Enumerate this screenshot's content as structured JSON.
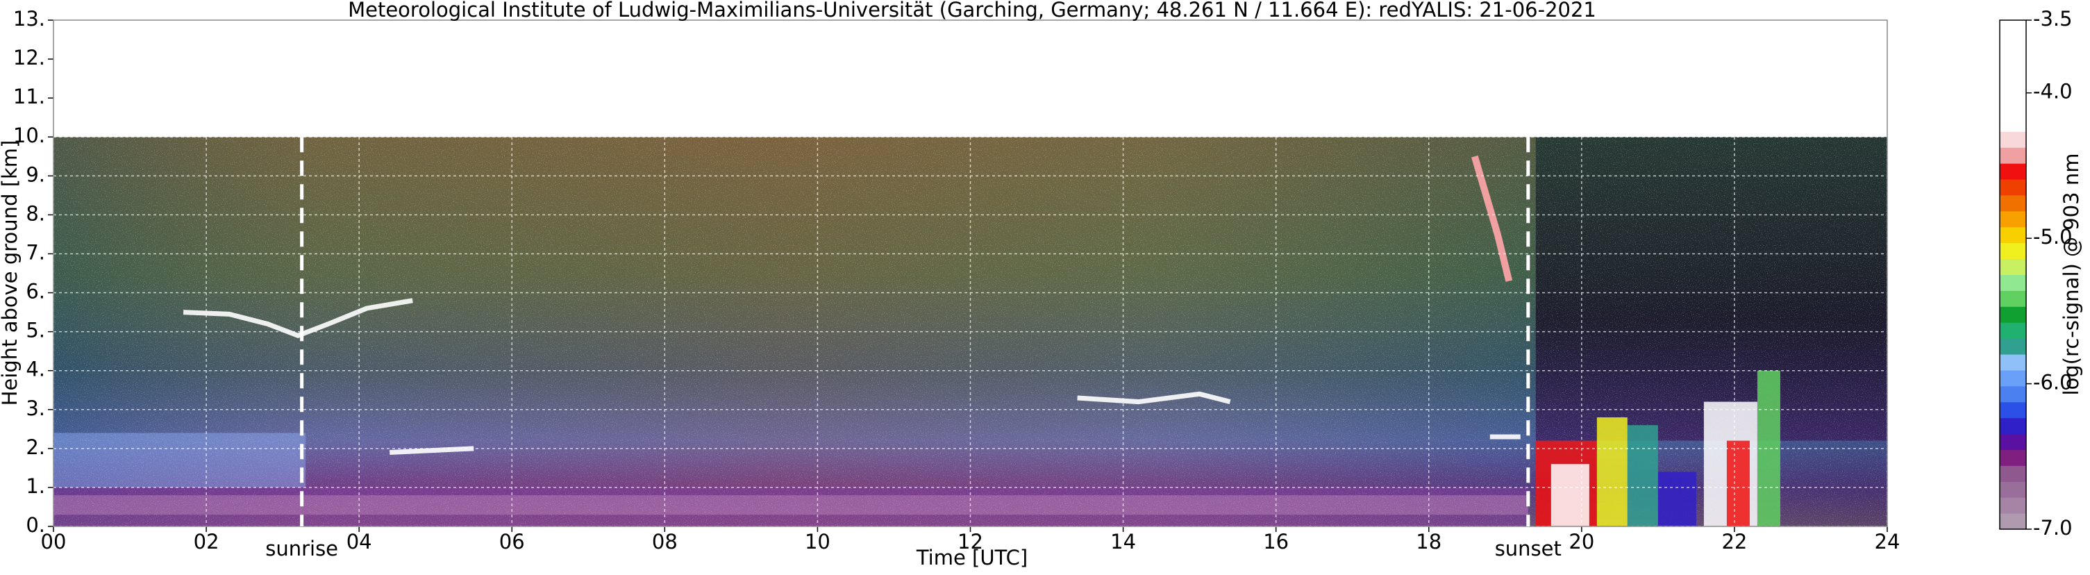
{
  "chart_data": {
    "type": "heatmap",
    "title": "Meteorological Institute of Ludwig-Maximilians-Universität (Garching, Germany; 48.261 N / 11.664 E):    redYALIS: 21-06-2021",
    "xlabel": "Time [UTC]",
    "ylabel": "Height above ground [km]",
    "xlim": [
      0,
      24
    ],
    "xticks": [
      {
        "value": 0,
        "label": "00"
      },
      {
        "value": 2,
        "label": "02"
      },
      {
        "value": 4,
        "label": "04"
      },
      {
        "value": 6,
        "label": "06"
      },
      {
        "value": 8,
        "label": "08"
      },
      {
        "value": 10,
        "label": "10"
      },
      {
        "value": 12,
        "label": "12"
      },
      {
        "value": 14,
        "label": "14"
      },
      {
        "value": 16,
        "label": "16"
      },
      {
        "value": 18,
        "label": "18"
      },
      {
        "value": 20,
        "label": "20"
      },
      {
        "value": 22,
        "label": "22"
      },
      {
        "value": 24,
        "label": "24"
      }
    ],
    "ylim": [
      0,
      13
    ],
    "yticks": [
      {
        "value": 0,
        "label": "0."
      },
      {
        "value": 1,
        "label": "1."
      },
      {
        "value": 2,
        "label": "2."
      },
      {
        "value": 3,
        "label": "3."
      },
      {
        "value": 4,
        "label": "4."
      },
      {
        "value": 5,
        "label": "5."
      },
      {
        "value": 6,
        "label": "6."
      },
      {
        "value": 7,
        "label": "7."
      },
      {
        "value": 8,
        "label": "8."
      },
      {
        "value": 9,
        "label": "9."
      },
      {
        "value": 10,
        "label": "10."
      },
      {
        "value": 11,
        "label": "11."
      },
      {
        "value": 12,
        "label": "12."
      },
      {
        "value": 13,
        "label": "13."
      }
    ],
    "grid": true,
    "annotations": [
      {
        "text": "sunrise",
        "x": 3.25
      },
      {
        "text": "sunset",
        "x": 19.3
      }
    ],
    "colorbar": {
      "label": "log(rc-signal) @ 903 nm",
      "lim": [
        -7.0,
        -3.5
      ],
      "ticks": [
        {
          "value": -7.0,
          "label": "-7.0"
        },
        {
          "value": -6.0,
          "label": "-6.0"
        },
        {
          "value": -5.0,
          "label": "-5.0"
        },
        {
          "value": -4.0,
          "label": "-4.0"
        },
        -3.5
      ],
      "colors": [
        "#b09ab0",
        "#a584a5",
        "#9a6e9a",
        "#8f588f",
        "#7f1f7f",
        "#5a10a0",
        "#3020c8",
        "#2a50e8",
        "#4a80f0",
        "#6aa0f8",
        "#90c0f8",
        "#30a090",
        "#20b070",
        "#10a030",
        "#60d060",
        "#90e890",
        "#c8f060",
        "#f0f020",
        "#f8d000",
        "#f8a000",
        "#f07000",
        "#f04000",
        "#f01010",
        "#f0a0a0",
        "#f8d8d8",
        "#ffffff",
        "#ffffff",
        "#ffffff",
        "#ffffff",
        "#ffffff",
        "#ffffff",
        "#ffffff"
      ]
    }
  }
}
